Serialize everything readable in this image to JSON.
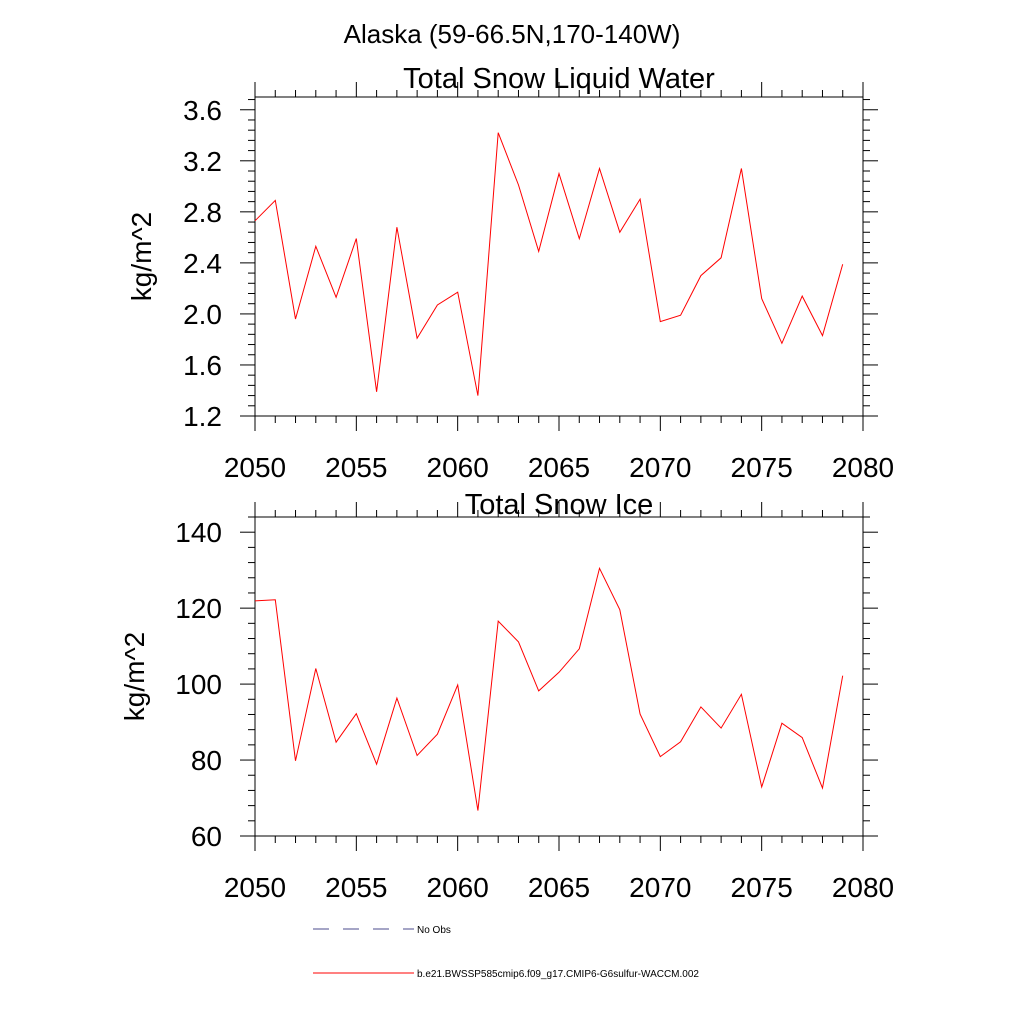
{
  "page_title": "Alaska (59-66.5N,170-140W)",
  "chart_data": [
    {
      "type": "line",
      "title": "Total Snow Liquid Water",
      "xlabel": "",
      "ylabel": "kg/m^2",
      "xlim": [
        2050,
        2080
      ],
      "ylim": [
        1.2,
        3.7
      ],
      "xticks": [
        2050,
        2055,
        2060,
        2065,
        2070,
        2075,
        2080
      ],
      "xtick_labels": [
        "2050",
        "2055",
        "2060",
        "2065",
        "2070",
        "2075",
        "2080"
      ],
      "yticks": [
        1.2,
        1.6,
        2.0,
        2.4,
        2.8,
        3.2,
        3.6
      ],
      "ytick_labels": [
        "1.2",
        "1.6",
        "2.0",
        "2.4",
        "2.8",
        "3.2",
        "3.6"
      ],
      "grid": false,
      "series": [
        {
          "name": "b.e21.BWSSP585cmip6.f09_g17.CMIP6-G6sulfur-WACCM.002",
          "color": "#ff0000",
          "x": [
            2050,
            2051,
            2052,
            2053,
            2054,
            2055,
            2056,
            2057,
            2058,
            2059,
            2060,
            2061,
            2062,
            2063,
            2064,
            2065,
            2066,
            2067,
            2068,
            2069,
            2070,
            2071,
            2072,
            2073,
            2074,
            2075,
            2076,
            2077,
            2078,
            2079
          ],
          "values": [
            2.73,
            2.89,
            1.96,
            2.53,
            2.13,
            2.59,
            1.39,
            2.68,
            1.81,
            2.07,
            2.17,
            1.36,
            3.42,
            3.01,
            2.49,
            3.1,
            2.59,
            3.14,
            2.64,
            2.9,
            1.94,
            1.99,
            2.3,
            2.44,
            3.14,
            2.12,
            1.77,
            2.14,
            1.83,
            2.39
          ]
        }
      ]
    },
    {
      "type": "line",
      "title": "Total Snow Ice",
      "xlabel": "",
      "ylabel": "kg/m^2",
      "xlim": [
        2050,
        2080
      ],
      "ylim": [
        60,
        144
      ],
      "xticks": [
        2050,
        2055,
        2060,
        2065,
        2070,
        2075,
        2080
      ],
      "xtick_labels": [
        "2050",
        "2055",
        "2060",
        "2065",
        "2070",
        "2075",
        "2080"
      ],
      "yticks": [
        60,
        80,
        100,
        120,
        140
      ],
      "ytick_labels": [
        "60",
        "80",
        "100",
        "120",
        "140"
      ],
      "grid": false,
      "series": [
        {
          "name": "b.e21.BWSSP585cmip6.f09_g17.CMIP6-G6sulfur-WACCM.002",
          "color": "#ff0000",
          "x": [
            2050,
            2051,
            2052,
            2053,
            2054,
            2055,
            2056,
            2057,
            2058,
            2059,
            2060,
            2061,
            2062,
            2063,
            2064,
            2065,
            2066,
            2067,
            2068,
            2069,
            2070,
            2071,
            2072,
            2073,
            2074,
            2075,
            2076,
            2077,
            2078,
            2079
          ],
          "values": [
            121.9,
            122.2,
            79.8,
            104.1,
            84.7,
            92.2,
            78.9,
            96.3,
            81.2,
            86.8,
            99.8,
            66.7,
            116.6,
            111.1,
            98.2,
            103.1,
            109.3,
            130.5,
            119.6,
            92.1,
            80.9,
            84.8,
            94.0,
            88.4,
            97.3,
            72.9,
            89.7,
            85.9,
            72.6,
            102.2
          ]
        }
      ]
    }
  ],
  "legend": {
    "placement": "bottom",
    "entries": [
      {
        "label": "No Obs",
        "color": "#4b4b8c",
        "style": "dashed"
      },
      {
        "label": "b.e21.BWSSP585cmip6.f09_g17.CMIP6-G6sulfur-WACCM.002",
        "color": "#ff0000",
        "style": "solid"
      }
    ]
  }
}
